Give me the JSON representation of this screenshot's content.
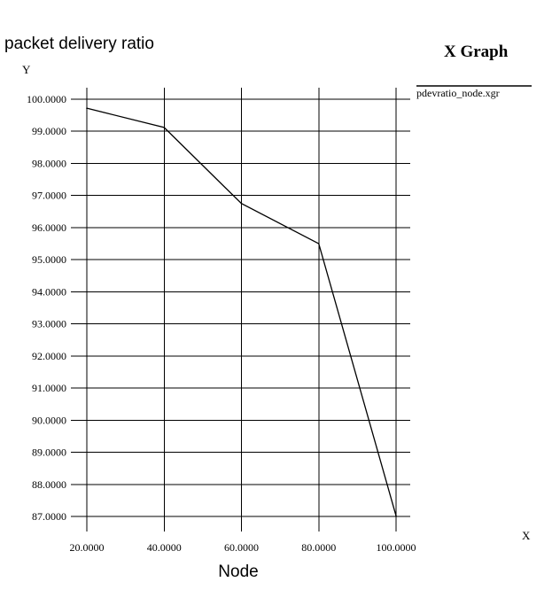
{
  "chart_data": {
    "type": "line",
    "title": "packet delivery ratio",
    "window_title": "X Graph",
    "xlabel": "Node",
    "x_axis_letter": "X",
    "y_axis_letter": "Y",
    "legend_title": "pdevratio_node.xgr",
    "legend_position": "right",
    "grid": true,
    "xlim": [
      20,
      100
    ],
    "ylim": [
      87,
      100
    ],
    "x_ticks": [
      "20.0000",
      "40.0000",
      "60.0000",
      "80.0000",
      "100.0000"
    ],
    "y_ticks": [
      "100.0000",
      "99.0000",
      "98.0000",
      "97.0000",
      "96.0000",
      "95.0000",
      "94.0000",
      "93.0000",
      "92.0000",
      "91.0000",
      "90.0000",
      "89.0000",
      "88.0000",
      "87.0000"
    ],
    "series": [
      {
        "x": [
          20,
          40,
          60,
          80,
          100
        ],
        "y": [
          99.72,
          99.12,
          96.75,
          95.5,
          87.02
        ],
        "color": "#000000"
      }
    ]
  }
}
